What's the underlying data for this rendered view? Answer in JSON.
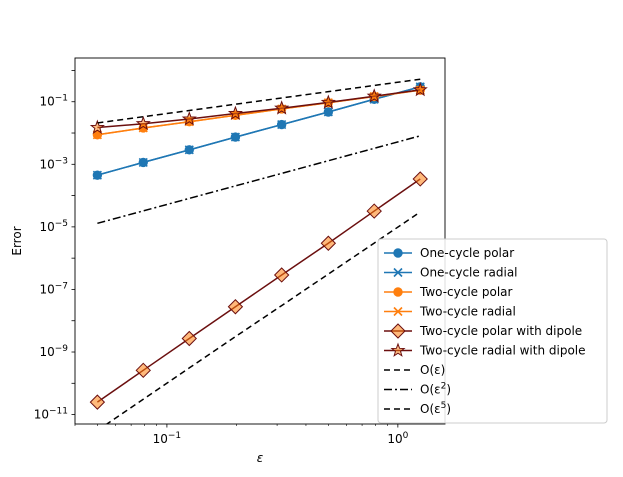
{
  "chart_data": {
    "type": "line",
    "xscale": "log",
    "yscale": "log",
    "xlabel": "ε",
    "ylabel": "Error",
    "xlim": [
      0.04,
      1.6
    ],
    "ylim": [
      5e-12,
      2.5
    ],
    "xticks": [
      {
        "value": 0.1,
        "base": "10",
        "exp": "−1"
      },
      {
        "value": 1,
        "base": "10",
        "exp": "0"
      }
    ],
    "yticks": [
      {
        "value": 1e-11,
        "base": "10",
        "exp": "−11"
      },
      {
        "value": 1e-09,
        "base": "10",
        "exp": "−9"
      },
      {
        "value": 1e-07,
        "base": "10",
        "exp": "−7"
      },
      {
        "value": 1e-05,
        "base": "10",
        "exp": "−5"
      },
      {
        "value": 0.001,
        "base": "10",
        "exp": "−3"
      },
      {
        "value": 0.1,
        "base": "10",
        "exp": "−1"
      }
    ],
    "x": [
      0.05,
      0.079,
      0.125,
      0.198,
      0.314,
      0.5,
      0.79,
      1.25
    ],
    "series": [
      {
        "name": "One-cycle polar",
        "color": "#1f77b4",
        "marker": "circle",
        "dash": "",
        "values": [
          0.00045,
          0.00115,
          0.0029,
          0.0074,
          0.0186,
          0.047,
          0.12,
          0.3
        ]
      },
      {
        "name": "One-cycle radial",
        "color": "#1f77b4",
        "marker": "x",
        "dash": "",
        "values": [
          0.00045,
          0.00115,
          0.0029,
          0.0074,
          0.0186,
          0.047,
          0.12,
          0.3
        ]
      },
      {
        "name": "Two-cycle polar",
        "color": "#ff7f0e",
        "marker": "circle",
        "dash": "",
        "values": [
          0.0088,
          0.0145,
          0.023,
          0.037,
          0.059,
          0.093,
          0.147,
          0.235
        ]
      },
      {
        "name": "Two-cycle radial",
        "color": "#ff7f0e",
        "marker": "x",
        "dash": "",
        "values": [
          0.0088,
          0.0145,
          0.023,
          0.037,
          0.059,
          0.093,
          0.147,
          0.235
        ]
      },
      {
        "name": "Two-cycle polar with dipole",
        "color": "#6b0f0f",
        "marker": "diamond",
        "dash": "",
        "values": [
          2.5e-11,
          2.6e-10,
          2.7e-09,
          2.8e-08,
          2.9e-07,
          3e-06,
          3.2e-05,
          0.00034
        ]
      },
      {
        "name": "Two-cycle radial with dipole",
        "color": "#6b0f0f",
        "marker": "star",
        "dash": "",
        "values": [
          0.015,
          0.0198,
          0.028,
          0.042,
          0.062,
          0.095,
          0.15,
          0.24
        ]
      },
      {
        "name": "O(ε)",
        "legend_main": "O(ε)",
        "legend_sup": "",
        "color": "#000000",
        "marker": "none",
        "dash": "6,4",
        "values": [
          0.021,
          0.0332,
          0.0525,
          0.0832,
          0.1319,
          0.21,
          0.3318,
          0.525
        ]
      },
      {
        "name": "O(ε²)",
        "legend_main": "O(ε)",
        "legend_sup": "2",
        "color": "#000000",
        "marker": "none",
        "dash": "8,3,2,3",
        "values": [
          1.3e-05,
          3.24e-05,
          8.13e-05,
          0.000204,
          0.000512,
          0.0013,
          0.00324,
          0.00813
        ]
      },
      {
        "name": "O(ε⁵)",
        "legend_main": "O(ε)",
        "legend_sup": "5",
        "color": "#000000",
        "marker": "none",
        "dash": "6,4",
        "values": [
          3.1e-12,
          3.1e-11,
          3.1e-10,
          3.1e-09,
          3.05e-08,
          3.1e-07,
          3.03e-06,
          3e-05
        ]
      }
    ],
    "legend": [
      {
        "label": "One-cycle polar",
        "color": "#1f77b4",
        "marker": "circle",
        "dash": ""
      },
      {
        "label": "One-cycle radial",
        "color": "#1f77b4",
        "marker": "x",
        "dash": ""
      },
      {
        "label": "Two-cycle polar",
        "color": "#ff7f0e",
        "marker": "circle",
        "dash": ""
      },
      {
        "label": "Two-cycle radial",
        "color": "#ff7f0e",
        "marker": "x",
        "dash": ""
      },
      {
        "label": "Two-cycle polar with dipole",
        "color": "#6b0f0f",
        "marker": "diamond",
        "dash": ""
      },
      {
        "label": "Two-cycle radial with dipole",
        "color": "#6b0f0f",
        "marker": "star",
        "dash": ""
      },
      {
        "label": "O(ε)",
        "main": "O(ε)",
        "sup": "",
        "color": "#000000",
        "marker": "none",
        "dash": "6,4"
      },
      {
        "label": "O(ε²)",
        "main": "O(ε)",
        "sup": "2",
        "color": "#000000",
        "marker": "none",
        "dash": "8,3,2,3"
      },
      {
        "label": "O(ε⁵)",
        "main": "O(ε)",
        "sup": "5",
        "color": "#000000",
        "marker": "none",
        "dash": "6,4"
      }
    ],
    "legend_position": "lower-right"
  }
}
